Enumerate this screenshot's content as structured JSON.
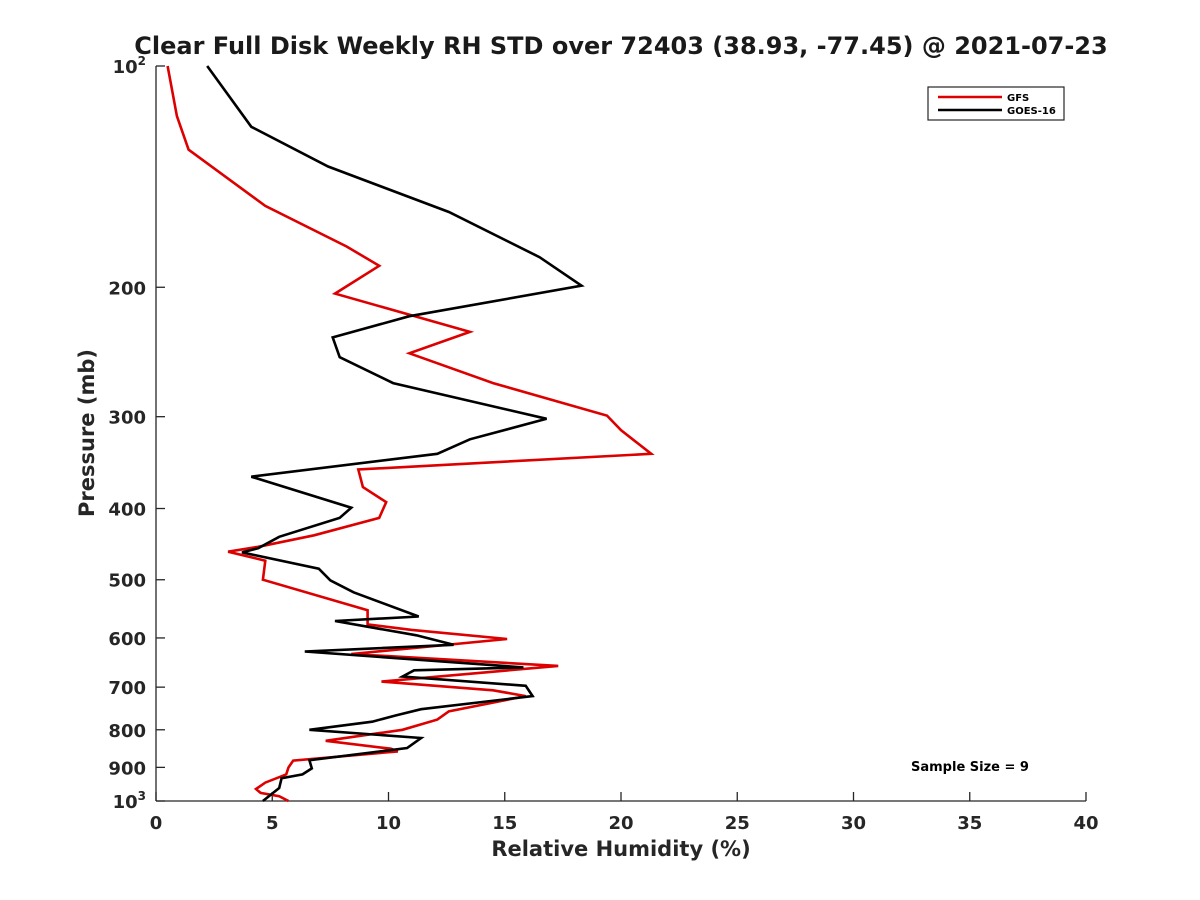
{
  "chart_data": {
    "type": "line",
    "title": "Clear Full Disk Weekly RH STD over 72403 (38.93, -77.45) @ 2021-07-23",
    "xlabel": "Relative Humidity (%)",
    "ylabel": "Pressure (mb)",
    "xlim": [
      0,
      40
    ],
    "ylim": [
      100,
      1000
    ],
    "y_scale": "log",
    "y_reversed": true,
    "x_ticks": [
      "0",
      "5",
      "10",
      "15",
      "20",
      "25",
      "30",
      "35",
      "40"
    ],
    "y_ticks": [
      {
        "value": 100,
        "base": "10",
        "exp": "2"
      },
      {
        "value": 200,
        "label": "200"
      },
      {
        "value": 300,
        "label": "300"
      },
      {
        "value": 400,
        "label": "400"
      },
      {
        "value": 500,
        "label": "500"
      },
      {
        "value": 600,
        "label": "600"
      },
      {
        "value": 700,
        "label": "700"
      },
      {
        "value": 800,
        "label": "800"
      },
      {
        "value": 900,
        "label": "900"
      },
      {
        "value": 1000,
        "base": "10",
        "exp": "3"
      }
    ],
    "grid": false,
    "legend_position": "top-right",
    "annotation": "Sample Size = 9",
    "series": [
      {
        "name": "GFS",
        "color": "#dd0000",
        "points": [
          [
            0.5,
            100
          ],
          [
            0.9,
            117
          ],
          [
            1.4,
            130
          ],
          [
            4.7,
            155
          ],
          [
            8.2,
            176
          ],
          [
            9.6,
            187
          ],
          [
            7.7,
            204
          ],
          [
            13.5,
            230
          ],
          [
            10.9,
            246
          ],
          [
            14.5,
            270
          ],
          [
            19.4,
            299
          ],
          [
            20.0,
            313
          ],
          [
            21.3,
            337
          ],
          [
            8.7,
            354
          ],
          [
            8.9,
            374
          ],
          [
            9.9,
            392
          ],
          [
            9.6,
            412
          ],
          [
            6.8,
            435
          ],
          [
            4.4,
            451
          ],
          [
            3.1,
            458
          ],
          [
            4.7,
            471
          ],
          [
            4.6,
            500
          ],
          [
            9.1,
            550
          ],
          [
            9.1,
            575
          ],
          [
            11.0,
            585
          ],
          [
            15.1,
            602
          ],
          [
            8.4,
            631
          ],
          [
            17.3,
            655
          ],
          [
            9.7,
            688
          ],
          [
            14.5,
            707
          ],
          [
            15.9,
            720
          ],
          [
            12.6,
            755
          ],
          [
            12.1,
            775
          ],
          [
            10.6,
            800
          ],
          [
            7.3,
            828
          ],
          [
            10.1,
            849
          ],
          [
            10.4,
            856
          ],
          [
            5.9,
            881
          ],
          [
            5.7,
            900
          ],
          [
            5.6,
            920
          ],
          [
            4.7,
            944
          ],
          [
            4.3,
            963
          ],
          [
            4.5,
            975
          ],
          [
            5.3,
            985
          ],
          [
            5.7,
            1000
          ]
        ]
      },
      {
        "name": "GOES-16",
        "color": "#000000",
        "points": [
          [
            2.2,
            100
          ],
          [
            4.1,
            121
          ],
          [
            7.4,
            137
          ],
          [
            12.6,
            158
          ],
          [
            16.5,
            182
          ],
          [
            18.3,
            199
          ],
          [
            10.9,
            219
          ],
          [
            7.6,
            234
          ],
          [
            7.9,
            249
          ],
          [
            10.2,
            270
          ],
          [
            16.8,
            302
          ],
          [
            13.5,
            322
          ],
          [
            12.1,
            337
          ],
          [
            4.1,
            362
          ],
          [
            8.4,
            399
          ],
          [
            7.9,
            412
          ],
          [
            5.3,
            437
          ],
          [
            4.4,
            453
          ],
          [
            3.7,
            459
          ],
          [
            7.0,
            483
          ],
          [
            7.5,
            501
          ],
          [
            8.5,
            520
          ],
          [
            11.3,
            561
          ],
          [
            7.7,
            569
          ],
          [
            11.2,
            595
          ],
          [
            12.8,
            613
          ],
          [
            6.4,
            626
          ],
          [
            15.8,
            658
          ],
          [
            11.1,
            664
          ],
          [
            10.6,
            677
          ],
          [
            15.9,
            697
          ],
          [
            16.2,
            720
          ],
          [
            11.4,
            750
          ],
          [
            10.3,
            765
          ],
          [
            9.3,
            780
          ],
          [
            6.6,
            800
          ],
          [
            11.4,
            821
          ],
          [
            10.8,
            847
          ],
          [
            6.6,
            880
          ],
          [
            6.7,
            903
          ],
          [
            6.3,
            920
          ],
          [
            5.4,
            931
          ],
          [
            5.3,
            960
          ],
          [
            4.6,
            1000
          ]
        ]
      }
    ]
  }
}
